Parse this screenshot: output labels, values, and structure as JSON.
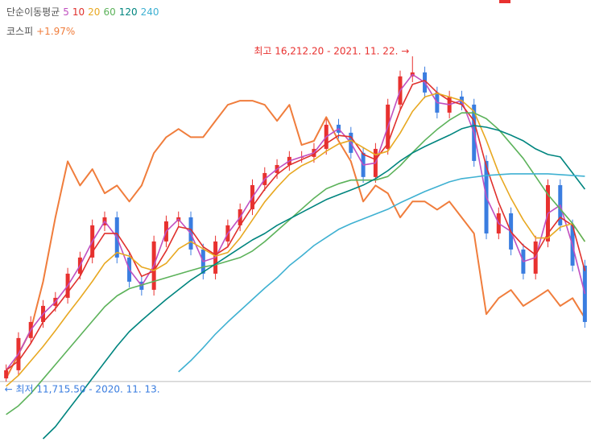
{
  "chart_data": {
    "type": "candlestick",
    "legend_title": "단순이동평균",
    "ylim": [
      10880,
      16990
    ],
    "y2lim": [
      2333,
      3522
    ],
    "up_color": "#e8312f",
    "down_color": "#3a7de0",
    "candles": {
      "open": [
        11760,
        11872,
        12317,
        12539,
        12762,
        12873,
        13207,
        13430,
        13875,
        13986,
        13430,
        13096,
        12984,
        13652,
        13930,
        13986,
        13541,
        13207,
        13652,
        13875,
        14097,
        14431,
        14598,
        14709,
        14821,
        14821,
        14932,
        15266,
        15155,
        14877,
        14543,
        14932,
        15544,
        15934,
        15989,
        15711,
        15433,
        15655,
        15544,
        14765,
        13763,
        14042,
        13541,
        13207,
        13652,
        14431,
        13875,
        13318
      ],
      "high": [
        11952,
        12397,
        12619,
        12842,
        12953,
        13287,
        13510,
        13955,
        14066,
        14066,
        13510,
        13176,
        13732,
        14010,
        14066,
        14066,
        13621,
        13732,
        13955,
        14177,
        14511,
        14678,
        14789,
        14901,
        14901,
        15012,
        15346,
        15346,
        15235,
        14957,
        15012,
        15624,
        16014,
        16212.2,
        16069,
        15791,
        15735,
        15735,
        15624,
        14845,
        14122,
        14122,
        13621,
        13732,
        14511,
        14511,
        13955,
        13398
      ],
      "low": [
        11715.5,
        11792,
        12237,
        12459,
        12682,
        12793,
        13127,
        13350,
        13795,
        13350,
        13016,
        12904,
        12904,
        13572,
        13850,
        13461,
        13127,
        13127,
        13572,
        13795,
        14017,
        14351,
        14518,
        14629,
        14741,
        14741,
        14852,
        15075,
        14797,
        14463,
        14463,
        14852,
        15464,
        15854,
        15631,
        15353,
        15353,
        15464,
        14685,
        13683,
        13683,
        13461,
        13127,
        13127,
        13572,
        13795,
        13238,
        12459
      ],
      "close": [
        11872,
        12317,
        12539,
        12762,
        12873,
        13207,
        13430,
        13875,
        13986,
        13430,
        13096,
        12984,
        13652,
        13930,
        13986,
        13541,
        13207,
        13652,
        13875,
        14097,
        14431,
        14598,
        14709,
        14821,
        14821,
        14932,
        15266,
        15155,
        14877,
        14543,
        14932,
        15544,
        15934,
        15989,
        15711,
        15433,
        15655,
        15544,
        14765,
        13763,
        14042,
        13541,
        13207,
        13652,
        14431,
        13875,
        13318,
        12539
      ]
    },
    "series": [
      {
        "name": "5",
        "color": "#c04fc0",
        "values": [
          11872,
          12095,
          12428,
          12650,
          12818,
          13040,
          13318,
          13652,
          13930,
          13708,
          13263,
          13040,
          13318,
          13791,
          13958,
          13763,
          13374,
          13430,
          13763,
          13986,
          14264,
          14514,
          14653,
          14765,
          14821,
          14876,
          15099,
          15210,
          15016,
          14710,
          14737,
          15238,
          15739,
          15961,
          15850,
          15572,
          15544,
          15600,
          15155,
          14264,
          13902,
          13791,
          13374,
          13430,
          14041,
          14153,
          13596,
          12928
        ]
      },
      {
        "name": "10",
        "color": "#e0302c",
        "values": [
          11872,
          12000,
          12243,
          12539,
          12725,
          12947,
          13170,
          13504,
          13764,
          13764,
          13504,
          13170,
          13244,
          13522,
          13856,
          13819,
          13578,
          13467,
          13578,
          13875,
          14134,
          14375,
          14579,
          14709,
          14783,
          14858,
          15006,
          15118,
          15099,
          14858,
          14784,
          15006,
          15470,
          15822,
          15878,
          15711,
          15600,
          15544,
          15321,
          14691,
          14190,
          13782,
          13597,
          13467,
          13763,
          13986,
          13875,
          13244
        ]
      },
      {
        "name": "20",
        "color": "#e8a821",
        "values": [
          11650,
          11800,
          12000,
          12200,
          12420,
          12650,
          12870,
          13100,
          13350,
          13500,
          13450,
          13300,
          13250,
          13350,
          13550,
          13650,
          13550,
          13450,
          13500,
          13700,
          13950,
          14200,
          14400,
          14580,
          14700,
          14780,
          14900,
          15000,
          15050,
          14950,
          14850,
          14900,
          15150,
          15450,
          15650,
          15700,
          15650,
          15600,
          15450,
          15050,
          14600,
          14250,
          13950,
          13700,
          13700,
          13850,
          13900,
          13650
        ]
      },
      {
        "name": "60",
        "color": "#5cb25a",
        "values": [
          11260,
          11380,
          11550,
          11750,
          11950,
          12150,
          12350,
          12550,
          12750,
          12900,
          13000,
          13050,
          13100,
          13150,
          13200,
          13250,
          13300,
          13330,
          13380,
          13430,
          13520,
          13650,
          13800,
          13950,
          14100,
          14250,
          14380,
          14450,
          14500,
          14500,
          14500,
          14550,
          14700,
          14880,
          15050,
          15200,
          15330,
          15430,
          15430,
          15350,
          15200,
          15000,
          14800,
          14550,
          14300,
          14100,
          13900,
          13650
        ]
      },
      {
        "name": "120",
        "color": "#00857f",
        "values": [
          null,
          null,
          null,
          10925,
          11091,
          11315,
          11537,
          11760,
          11983,
          12205,
          12406,
          12561,
          12706,
          12851,
          12984,
          13118,
          13229,
          13340,
          13452,
          13563,
          13674,
          13763,
          13875,
          13964,
          14053,
          14142,
          14231,
          14298,
          14364,
          14431,
          14520,
          14631,
          14765,
          14876,
          14965,
          15043,
          15121,
          15210,
          15255,
          15232,
          15188,
          15121,
          15043,
          14932,
          14854,
          14821,
          14598,
          14375
        ]
      },
      {
        "name": "240",
        "color": "#3fb1d2",
        "values": [
          null,
          null,
          null,
          null,
          null,
          null,
          null,
          null,
          null,
          null,
          null,
          null,
          null,
          null,
          11849,
          12005,
          12183,
          12372,
          12539,
          12695,
          12851,
          13007,
          13151,
          13318,
          13452,
          13596,
          13708,
          13819,
          13897,
          13964,
          14031,
          14097,
          14186,
          14264,
          14342,
          14409,
          14476,
          14520,
          14542,
          14565,
          14576,
          14587,
          14587,
          14587,
          14587,
          14576,
          14565,
          14554
        ]
      },
      {
        "name": "코스피",
        "change": "+1.97%",
        "color": "#f07d3c",
        "axis": "y2",
        "values": [
          2504,
          2569,
          2634,
          2764,
          2937,
          3088,
          3023,
          3067,
          3002,
          3023,
          2980,
          3023,
          3110,
          3153,
          3175,
          3153,
          3153,
          3197,
          3240,
          3251,
          3251,
          3240,
          3197,
          3240,
          3132,
          3143,
          3207,
          3143,
          3088,
          2980,
          3023,
          3002,
          2937,
          2980,
          2980,
          2958,
          2980,
          2937,
          2894,
          2677,
          2720,
          2742,
          2699,
          2720,
          2742,
          2699,
          2720,
          2666
        ]
      }
    ],
    "annotations": {
      "high": "최고 16,212.20 - 2021. 11. 22. →",
      "low": "← 최저 11,715.50 - 2020. 11. 13."
    }
  }
}
